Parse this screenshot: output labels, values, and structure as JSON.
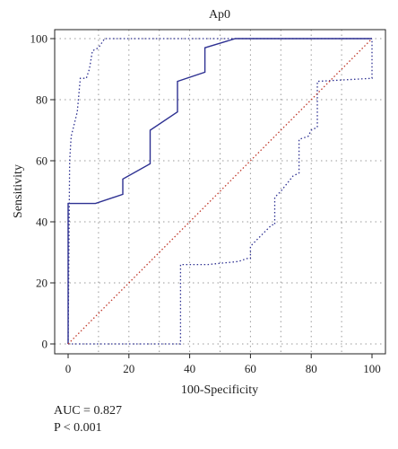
{
  "chart_data": {
    "type": "line",
    "title": "Ap0",
    "xlabel": "100-Specificity",
    "ylabel": "Sensitivity",
    "xlim": [
      0,
      100
    ],
    "ylim": [
      0,
      100
    ],
    "x_ticks": [
      0,
      20,
      40,
      60,
      80,
      100
    ],
    "y_ticks": [
      0,
      20,
      40,
      60,
      80,
      100
    ],
    "grid": true,
    "series": [
      {
        "role": "roc-curve",
        "style": "solid",
        "color": "#2e3192",
        "x": [
          0,
          0,
          9,
          18,
          18,
          27,
          27,
          36,
          36,
          45,
          45,
          55,
          100
        ],
        "y": [
          0,
          46,
          46,
          49,
          54,
          59,
          70,
          76,
          86,
          89,
          97,
          100,
          100
        ]
      },
      {
        "role": "upper-confidence-bound",
        "style": "dotted",
        "color": "#2e3192",
        "x": [
          0,
          0.5,
          1,
          2,
          3,
          4,
          6,
          7,
          8,
          10,
          12,
          15,
          100
        ],
        "y": [
          0,
          60,
          68,
          72,
          76,
          87,
          87,
          90,
          96,
          97,
          100,
          100,
          100
        ]
      },
      {
        "role": "lower-confidence-bound",
        "style": "dotted",
        "color": "#2e3192",
        "x": [
          0,
          37,
          37,
          46,
          56,
          59,
          60,
          60,
          62,
          67,
          68,
          68,
          70,
          74,
          76,
          76,
          79,
          80,
          82,
          82,
          100,
          100
        ],
        "y": [
          0,
          0,
          26,
          26,
          27,
          28,
          28,
          32,
          34,
          39,
          39,
          48,
          50,
          55,
          56,
          67,
          68,
          70,
          71,
          86,
          87,
          100
        ]
      },
      {
        "role": "reference-diagonal",
        "style": "dotted",
        "color": "#c0392b",
        "x": [
          0,
          100
        ],
        "y": [
          0,
          100
        ]
      }
    ]
  },
  "stats": {
    "auc": "AUC = 0.827",
    "p": "P < 0.001"
  }
}
